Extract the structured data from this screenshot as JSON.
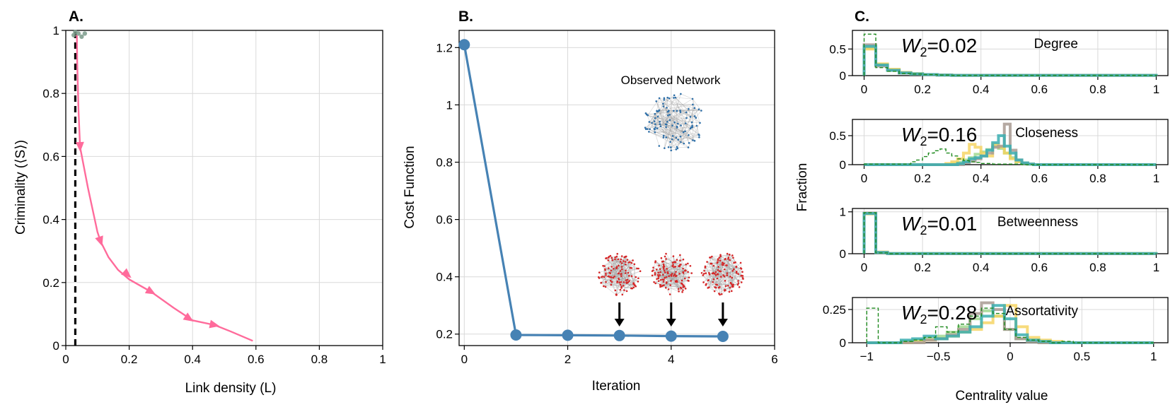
{
  "colors": {
    "pink": "#ff6b9b",
    "pink_light": "#ff9ec0",
    "blue": "#4682b4",
    "network_blue": "#2e6fa8",
    "network_red": "#d62728",
    "hist_green_dash": "#1f8a1f",
    "hist_teal": "#3aaeb0",
    "hist_yellow": "#f5d25b",
    "hist_taupe": "#a89a92",
    "hist_lightgreen": "#8fd17a",
    "hist_orange": "#f0a35a"
  },
  "chart_data": [
    {
      "id": "A",
      "type": "line",
      "panel_label": "A.",
      "xlabel": "Link density (L)",
      "ylabel": "Criminality (⟨S⟩)",
      "xlim": [
        0,
        1
      ],
      "ylim": [
        0,
        1
      ],
      "xticks": [
        0,
        0.2,
        0.4,
        0.6,
        0.8,
        1
      ],
      "xtick_labels": [
        "0",
        "0.2",
        "0.4",
        "0.6",
        "0.8",
        "1"
      ],
      "yticks": [
        0,
        0.2,
        0.4,
        0.6,
        0.8,
        1
      ],
      "ytick_labels": [
        "0",
        "0.2",
        "0.4",
        "0.6",
        "0.8",
        "1"
      ],
      "grid": true,
      "series": [
        {
          "name": "trajectory",
          "x": [
            0.035,
            0.036,
            0.04,
            0.045,
            0.07,
            0.1,
            0.11,
            0.135,
            0.165,
            0.2,
            0.27,
            0.34,
            0.4,
            0.47,
            0.52,
            0.59
          ],
          "y": [
            0.985,
            0.9,
            0.75,
            0.63,
            0.5,
            0.36,
            0.33,
            0.28,
            0.24,
            0.21,
            0.17,
            0.12,
            0.08,
            0.065,
            0.045,
            0.015
          ]
        }
      ],
      "arrow_positions": [
        [
          0.045,
          0.63
        ],
        [
          0.11,
          0.33
        ],
        [
          0.195,
          0.225
        ],
        [
          0.27,
          0.17
        ],
        [
          0.39,
          0.085
        ],
        [
          0.47,
          0.065
        ]
      ],
      "vline_x": 0.03,
      "cluster_points": [
        [
          0.025,
          0.985
        ],
        [
          0.04,
          0.99
        ],
        [
          0.05,
          0.98
        ],
        [
          0.03,
          0.995
        ],
        [
          0.06,
          0.99
        ]
      ]
    },
    {
      "id": "B",
      "type": "line",
      "panel_label": "B.",
      "xlabel": "Iteration",
      "ylabel": "Cost Function",
      "xlim": [
        -0.1,
        6
      ],
      "ylim": [
        0.16,
        1.26
      ],
      "xticks": [
        0,
        2,
        4,
        6
      ],
      "xtick_labels": [
        "0",
        "2",
        "4",
        "6"
      ],
      "yticks": [
        0.2,
        0.4,
        0.6,
        0.8,
        1,
        1.2
      ],
      "ytick_labels": [
        "0.2",
        "0.4",
        "0.6",
        "0.8",
        "1",
        "1.2"
      ],
      "grid": true,
      "series": [
        {
          "name": "cost",
          "x": [
            0,
            1,
            2,
            3,
            4,
            5
          ],
          "y": [
            1.21,
            0.197,
            0.196,
            0.195,
            0.193,
            0.192
          ]
        }
      ],
      "annotation": "Observed Network",
      "arrows_at_x": [
        3,
        4,
        5
      ]
    },
    {
      "id": "C",
      "type": "histogram",
      "panel_label": "C.",
      "ylabel": "Fraction",
      "xlabel": "Centrality value",
      "subplots": [
        {
          "name": "Degree",
          "w2": "=0.02",
          "xlim": [
            -0.04,
            1.04
          ],
          "ylim": [
            0,
            0.85
          ],
          "xticks": [
            0,
            0.2,
            0.4,
            0.6,
            0.8,
            1
          ],
          "xtick_labels": [
            "0",
            "0.2",
            "0.4",
            "0.6",
            "0.8",
            "1"
          ],
          "yticks": [
            0,
            0.5
          ],
          "ytick_labels": [
            "0",
            "0.5"
          ],
          "bin_edges": [
            0,
            0.04,
            0.08,
            0.12,
            0.16,
            0.2,
            0.25,
            0.3,
            1.0
          ],
          "series": [
            {
              "name": "observed",
              "style": "dashed",
              "values": [
                0.78,
                0.15,
                0.08,
                0.04,
                0.03,
                0.02,
                0.01,
                0.005
              ]
            },
            {
              "name": "sim-teal",
              "values": [
                0.55,
                0.2,
                0.1,
                0.05,
                0.03,
                0.02,
                0.01,
                0.005
              ]
            },
            {
              "name": "sim-yellow",
              "values": [
                0.5,
                0.22,
                0.12,
                0.06,
                0.03,
                0.02,
                0.01,
                0.005
              ]
            },
            {
              "name": "sim-taupe",
              "values": [
                0.58,
                0.18,
                0.1,
                0.05,
                0.03,
                0.02,
                0.01,
                0.005
              ]
            },
            {
              "name": "sim-lightgreen",
              "values": [
                0.52,
                0.21,
                0.11,
                0.06,
                0.04,
                0.02,
                0.01,
                0.005
              ]
            }
          ]
        },
        {
          "name": "Closeness",
          "w2": "=0.16",
          "xlim": [
            -0.04,
            1.04
          ],
          "ylim": [
            0,
            0.78
          ],
          "xticks": [
            0,
            0.2,
            0.4,
            0.6,
            0.8,
            1
          ],
          "xtick_labels": [
            "0",
            "0.2",
            "0.4",
            "0.6",
            "0.8",
            "1"
          ],
          "yticks": [
            0,
            0.5
          ],
          "ytick_labels": [
            "0",
            "0.5"
          ],
          "bin_edges": [
            0,
            0.16,
            0.18,
            0.2,
            0.22,
            0.24,
            0.26,
            0.28,
            0.3,
            0.32,
            0.34,
            0.36,
            0.38,
            0.4,
            0.42,
            0.44,
            0.46,
            0.48,
            0.5,
            0.52,
            0.54,
            0.56,
            0.58,
            0.6,
            1.0
          ],
          "series": [
            {
              "name": "observed",
              "style": "dashed",
              "values": [
                0.01,
                0.05,
                0.08,
                0.14,
                0.2,
                0.24,
                0.27,
                0.2,
                0.15,
                0.1,
                0.07,
                0.05,
                0.04,
                0.02,
                0.02,
                0.01,
                0.01,
                0.01,
                0.01,
                0.01,
                0.0,
                0.0,
                0.0,
                0.0
              ]
            },
            {
              "name": "sim-yellow",
              "values": [
                0.0,
                0.0,
                0.0,
                0.0,
                0.0,
                0.0,
                0.0,
                0.02,
                0.05,
                0.1,
                0.2,
                0.35,
                0.3,
                0.2,
                0.15,
                0.35,
                0.3,
                0.2,
                0.1,
                0.05,
                0.03,
                0.01,
                0.0,
                0.0
              ]
            },
            {
              "name": "sim-teal",
              "values": [
                0.0,
                0.0,
                0.0,
                0.0,
                0.0,
                0.0,
                0.0,
                0.0,
                0.0,
                0.02,
                0.05,
                0.1,
                0.12,
                0.15,
                0.25,
                0.38,
                0.5,
                0.32,
                0.2,
                0.08,
                0.03,
                0.01,
                0.0,
                0.0
              ]
            },
            {
              "name": "sim-taupe",
              "values": [
                0.0,
                0.0,
                0.0,
                0.0,
                0.0,
                0.0,
                0.0,
                0.0,
                0.0,
                0.0,
                0.03,
                0.06,
                0.1,
                0.15,
                0.2,
                0.3,
                0.32,
                0.7,
                0.25,
                0.08,
                0.03,
                0.01,
                0.0,
                0.0
              ]
            },
            {
              "name": "sim-lightgreen",
              "values": [
                0.0,
                0.0,
                0.0,
                0.0,
                0.0,
                0.0,
                0.0,
                0.0,
                0.02,
                0.04,
                0.08,
                0.12,
                0.18,
                0.22,
                0.26,
                0.32,
                0.28,
                0.2,
                0.12,
                0.05,
                0.02,
                0.01,
                0.0,
                0.0
              ]
            }
          ]
        },
        {
          "name": "Betweenness",
          "w2": "=0.01",
          "xlim": [
            -0.04,
            1.04
          ],
          "ylim": [
            0,
            1.08
          ],
          "xticks": [
            0,
            0.2,
            0.4,
            0.6,
            0.8,
            1
          ],
          "xtick_labels": [
            "0",
            "0.2",
            "0.4",
            "0.6",
            "0.8",
            "1"
          ],
          "yticks": [
            0,
            1
          ],
          "ytick_labels": [
            "0",
            "1"
          ],
          "bin_edges": [
            0,
            0.04,
            0.08,
            1.0
          ],
          "series": [
            {
              "name": "observed",
              "style": "dashed",
              "values": [
                0.98,
                0.02,
                0.0
              ]
            },
            {
              "name": "sim-teal",
              "values": [
                0.96,
                0.03,
                0.005
              ]
            },
            {
              "name": "sim-yellow",
              "values": [
                0.95,
                0.04,
                0.005
              ]
            },
            {
              "name": "sim-taupe",
              "values": [
                0.97,
                0.03,
                0.0
              ]
            },
            {
              "name": "sim-lightgreen",
              "values": [
                0.96,
                0.03,
                0.005
              ]
            }
          ]
        },
        {
          "name": "Assortativity",
          "w2": "=0.28",
          "xlim": [
            -1.1,
            1.1
          ],
          "ylim": [
            0,
            0.34
          ],
          "xticks": [
            -1,
            -0.5,
            0,
            0.5,
            1
          ],
          "xtick_labels": [
            "−1",
            "−0.5",
            "0",
            "0.5",
            "1"
          ],
          "yticks": [
            0,
            0.25
          ],
          "ytick_labels": [
            "0",
            "0.25"
          ],
          "bin_edges": [
            -1.0,
            -0.92,
            -0.84,
            -0.76,
            -0.68,
            -0.6,
            -0.52,
            -0.44,
            -0.36,
            -0.28,
            -0.2,
            -0.12,
            -0.04,
            0.04,
            0.12,
            0.2,
            0.28,
            0.36,
            0.44,
            0.52,
            1.0
          ],
          "series": [
            {
              "name": "observed",
              "style": "dashed",
              "values": [
                0.26,
                0.0,
                0.0,
                0.01,
                0.02,
                0.04,
                0.12,
                0.08,
                0.14,
                0.2,
                0.26,
                0.22,
                0.1,
                0.04,
                0.02,
                0.01,
                0.0,
                0.01,
                0.0,
                0.0
              ]
            },
            {
              "name": "sim-teal",
              "values": [
                0.0,
                0.0,
                0.0,
                0.02,
                0.03,
                0.05,
                0.03,
                0.05,
                0.08,
                0.12,
                0.2,
                0.28,
                0.18,
                0.06,
                0.02,
                0.01,
                0.0,
                0.0,
                0.0,
                0.0
              ]
            },
            {
              "name": "sim-yellow",
              "values": [
                0.0,
                0.0,
                0.0,
                0.0,
                0.01,
                0.02,
                0.03,
                0.05,
                0.08,
                0.1,
                0.15,
                0.2,
                0.28,
                0.12,
                0.04,
                0.02,
                0.01,
                0.0,
                0.0,
                0.0
              ]
            },
            {
              "name": "sim-taupe",
              "values": [
                0.0,
                0.0,
                0.0,
                0.0,
                0.0,
                0.02,
                0.03,
                0.06,
                0.1,
                0.22,
                0.3,
                0.25,
                0.1,
                0.03,
                0.01,
                0.0,
                0.0,
                0.0,
                0.0,
                0.0
              ]
            },
            {
              "name": "sim-lightgreen",
              "values": [
                0.0,
                0.0,
                0.0,
                0.01,
                0.02,
                0.03,
                0.05,
                0.08,
                0.12,
                0.18,
                0.24,
                0.2,
                0.1,
                0.03,
                0.01,
                0.0,
                0.0,
                0.0,
                0.0,
                0.0
              ]
            }
          ]
        }
      ]
    }
  ]
}
